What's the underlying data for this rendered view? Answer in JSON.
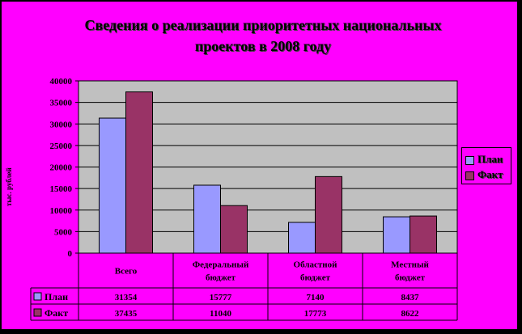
{
  "chart_data": {
    "type": "bar",
    "title_line1": "Сведения о реализации приоритетных национальных",
    "title_line2": "проектов в 2008 году",
    "ylabel": "тыс. рублей",
    "categories": [
      "Всего",
      "Федеральный бюджет",
      "Областной бюджет",
      "Местный бюджет"
    ],
    "category_lines": [
      [
        "Всего"
      ],
      [
        "Федеральный",
        "бюджет"
      ],
      [
        "Областной",
        "бюджет"
      ],
      [
        "Местный",
        "бюджет"
      ]
    ],
    "series": [
      {
        "name": "План",
        "values": [
          31354,
          15777,
          7140,
          8437
        ],
        "labels": [
          "31354",
          "15777",
          "7140",
          "8437"
        ],
        "color": "#9999FF"
      },
      {
        "name": "Факт",
        "values": [
          37435,
          11040,
          17773,
          8622
        ],
        "labels": [
          "37435",
          "11040",
          "17773",
          "8622"
        ],
        "color": "#993366"
      }
    ],
    "yticks": [
      "0",
      "5000",
      "10000",
      "15000",
      "20000",
      "25000",
      "30000",
      "35000",
      "40000"
    ],
    "ylim": [
      0,
      40000
    ],
    "grid": true,
    "legend_position": "right",
    "plot_bg": "#C0C0C0",
    "frame_bg": "#FF00FF"
  }
}
